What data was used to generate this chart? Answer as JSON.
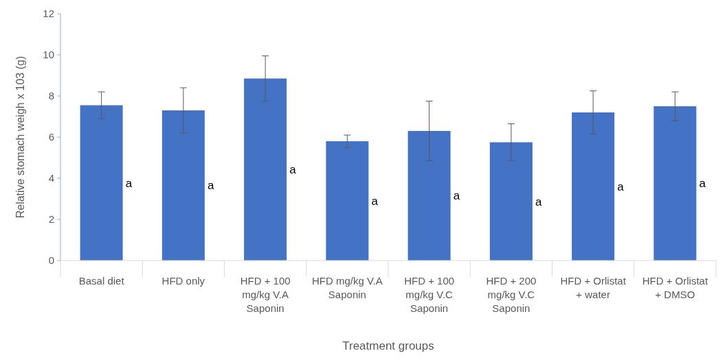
{
  "chart_data": {
    "type": "bar",
    "xlabel": "Treatment groups",
    "ylabel": "Relative stomach weigh x 103 (g)",
    "categories": [
      "Basal diet",
      "HFD only",
      "HFD + 100 mg/kg V.A Saponin",
      "HFD mg/kg V.A Saponin",
      "HFD + 100 mg/kg V.C Saponin",
      "HFD + 200 mg/kg V.C Saponin",
      "HFD + Orlistat + water",
      "HFD + Orlistat + DMSO"
    ],
    "values": [
      7.55,
      7.3,
      8.85,
      5.8,
      6.3,
      5.75,
      7.2,
      7.5
    ],
    "errors": [
      0.65,
      1.1,
      1.1,
      0.3,
      1.45,
      0.9,
      1.05,
      0.7
    ],
    "color": "#4472c4",
    "ylim": [
      0,
      12
    ],
    "yticks": [
      0,
      2,
      4,
      6,
      8,
      10,
      12
    ],
    "grid": false,
    "annotations": [
      "a",
      "a",
      "a",
      "a",
      "a",
      "a",
      "a",
      "a"
    ]
  }
}
